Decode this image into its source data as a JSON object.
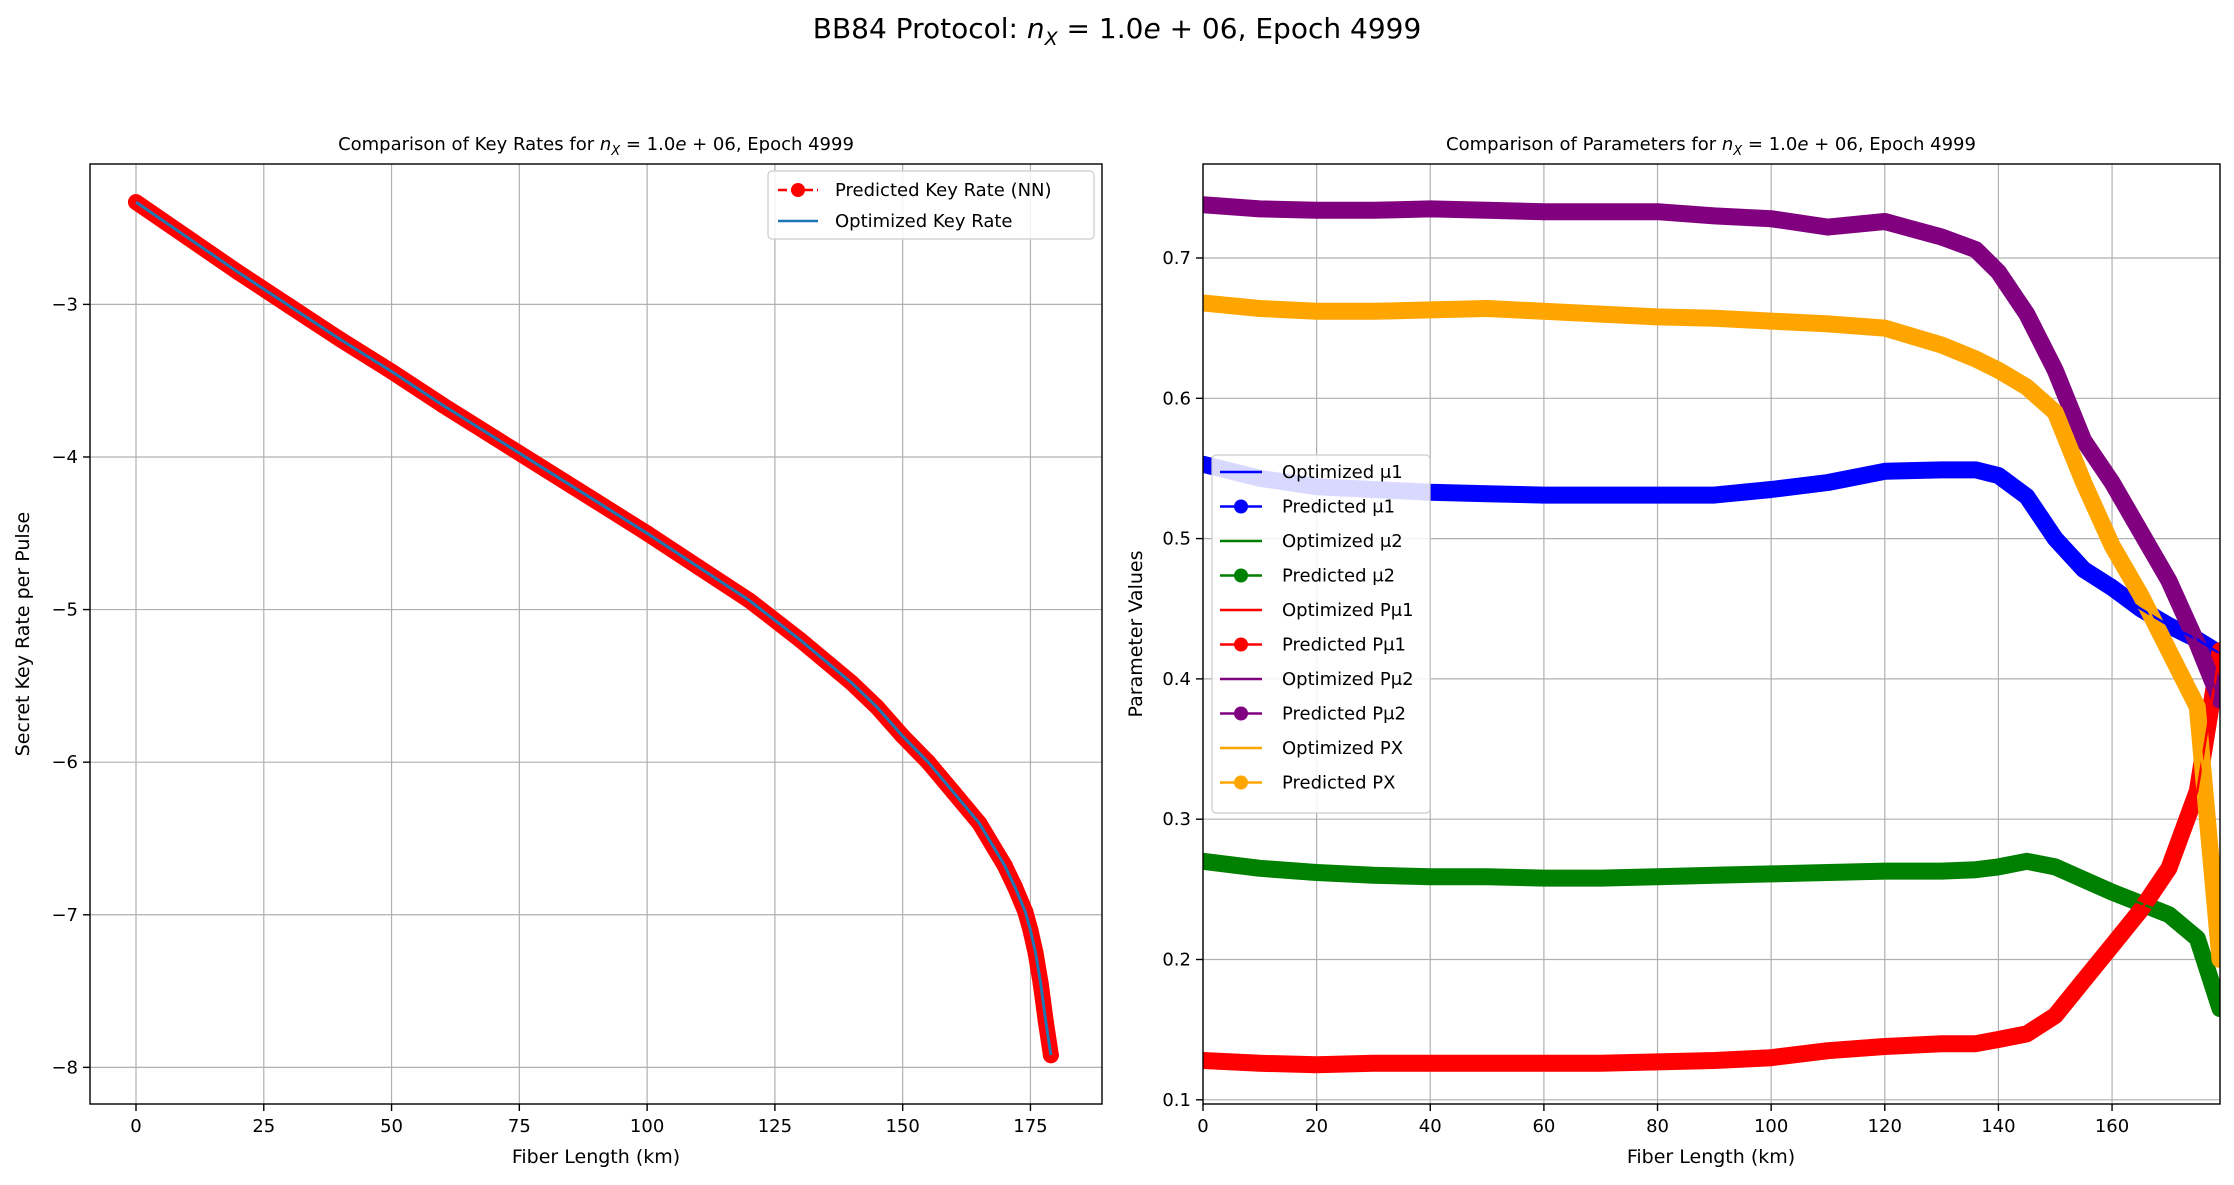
{
  "suptitle": "BB84 Protocol: n_X = 1.0e+06, Epoch 4999",
  "chart_data": [
    {
      "type": "line",
      "title": "Comparison of Key Rates for n_X = 1.0e+06, Epoch 4999",
      "xlabel": "Fiber Length (km)",
      "ylabel": "Secret Key Rate per Pulse",
      "xlim": [
        -9,
        189
      ],
      "ylim": [
        -8.24,
        -2.08
      ],
      "xticks": [
        "0",
        "25",
        "50",
        "75",
        "100",
        "125",
        "150",
        "175"
      ],
      "yticks": [
        "−3",
        "−4",
        "−5",
        "−6",
        "−7",
        "−8"
      ],
      "grid": true,
      "legend_position": "top-right",
      "x": [
        0,
        10,
        20,
        30,
        40,
        50,
        60,
        70,
        80,
        90,
        100,
        110,
        120,
        130,
        140,
        145,
        150,
        155,
        160,
        165,
        170,
        172,
        174,
        175,
        176,
        177,
        178,
        179
      ],
      "series": [
        {
          "name": "Predicted Key Rate (NN)",
          "color": "#ff0000",
          "style": "dashed-marker",
          "values": [
            -2.33,
            -2.56,
            -2.79,
            -3.01,
            -3.23,
            -3.44,
            -3.66,
            -3.87,
            -4.08,
            -4.29,
            -4.5,
            -4.72,
            -4.94,
            -5.2,
            -5.48,
            -5.64,
            -5.83,
            -6.0,
            -6.2,
            -6.4,
            -6.68,
            -6.82,
            -6.98,
            -7.1,
            -7.25,
            -7.45,
            -7.7,
            -7.92
          ]
        },
        {
          "name": "Optimized Key Rate",
          "color": "#1f77b4",
          "style": "solid",
          "values": [
            -2.33,
            -2.56,
            -2.79,
            -3.01,
            -3.23,
            -3.44,
            -3.66,
            -3.87,
            -4.08,
            -4.29,
            -4.5,
            -4.72,
            -4.94,
            -5.2,
            -5.48,
            -5.64,
            -5.83,
            -6.0,
            -6.2,
            -6.4,
            -6.68,
            -6.82,
            -6.98,
            -7.1,
            -7.25,
            -7.45,
            -7.7,
            -7.92
          ]
        }
      ]
    },
    {
      "type": "line",
      "title": "Comparison of Parameters for n_X = 1.0e+06, Epoch 4999",
      "xlabel": "Fiber Length (km)",
      "ylabel": "Parameter Values",
      "xlim": [
        0,
        179
      ],
      "ylim": [
        0.097,
        0.767
      ],
      "xticks": [
        "0",
        "20",
        "40",
        "60",
        "80",
        "100",
        "120",
        "140",
        "160"
      ],
      "yticks": [
        "0.1",
        "0.2",
        "0.3",
        "0.4",
        "0.5",
        "0.6",
        "0.7"
      ],
      "grid": true,
      "legend_position": "center-left",
      "x": [
        0,
        10,
        20,
        30,
        40,
        50,
        60,
        70,
        80,
        90,
        100,
        110,
        120,
        130,
        136,
        140,
        145,
        150,
        155,
        160,
        165,
        170,
        175,
        179
      ],
      "series": [
        {
          "name": "Optimized μ1",
          "color": "#0000ff",
          "style": "solid",
          "values": [
            0.553,
            0.543,
            0.537,
            0.535,
            0.533,
            0.532,
            0.531,
            0.531,
            0.531,
            0.531,
            0.535,
            0.54,
            0.548,
            0.549,
            0.549,
            0.545,
            0.53,
            0.5,
            0.478,
            0.465,
            0.45,
            0.438,
            0.428,
            0.418
          ]
        },
        {
          "name": "Predicted μ1",
          "color": "#0000ff",
          "style": "marker",
          "values": [
            0.553,
            0.543,
            0.537,
            0.535,
            0.533,
            0.532,
            0.531,
            0.531,
            0.531,
            0.531,
            0.535,
            0.54,
            0.548,
            0.549,
            0.549,
            0.545,
            0.53,
            0.5,
            0.478,
            0.465,
            0.45,
            0.438,
            0.428,
            0.418
          ]
        },
        {
          "name": "Optimized μ2",
          "color": "#008000",
          "style": "solid",
          "values": [
            0.27,
            0.265,
            0.262,
            0.26,
            0.259,
            0.259,
            0.258,
            0.258,
            0.259,
            0.26,
            0.261,
            0.262,
            0.263,
            0.263,
            0.264,
            0.266,
            0.27,
            0.266,
            0.257,
            0.248,
            0.24,
            0.232,
            0.215,
            0.165
          ]
        },
        {
          "name": "Predicted μ2",
          "color": "#008000",
          "style": "marker",
          "values": [
            0.27,
            0.265,
            0.262,
            0.26,
            0.259,
            0.259,
            0.258,
            0.258,
            0.259,
            0.26,
            0.261,
            0.262,
            0.263,
            0.263,
            0.264,
            0.266,
            0.27,
            0.266,
            0.257,
            0.248,
            0.24,
            0.232,
            0.215,
            0.165
          ]
        },
        {
          "name": "Optimized Pμ1",
          "color": "#ff0000",
          "style": "solid",
          "values": [
            0.128,
            0.126,
            0.125,
            0.126,
            0.126,
            0.126,
            0.126,
            0.126,
            0.127,
            0.128,
            0.13,
            0.135,
            0.138,
            0.14,
            0.14,
            0.143,
            0.147,
            0.16,
            0.185,
            0.21,
            0.235,
            0.265,
            0.32,
            0.42
          ]
        },
        {
          "name": "Predicted Pμ1",
          "color": "#ff0000",
          "style": "marker",
          "values": [
            0.128,
            0.126,
            0.125,
            0.126,
            0.126,
            0.126,
            0.126,
            0.126,
            0.127,
            0.128,
            0.13,
            0.135,
            0.138,
            0.14,
            0.14,
            0.143,
            0.147,
            0.16,
            0.185,
            0.21,
            0.235,
            0.265,
            0.32,
            0.42
          ]
        },
        {
          "name": "Optimized Pμ2",
          "color": "#800080",
          "style": "solid",
          "values": [
            0.738,
            0.735,
            0.734,
            0.734,
            0.735,
            0.734,
            0.733,
            0.733,
            0.733,
            0.73,
            0.728,
            0.722,
            0.726,
            0.715,
            0.706,
            0.69,
            0.66,
            0.62,
            0.57,
            0.54,
            0.505,
            0.47,
            0.425,
            0.385
          ]
        },
        {
          "name": "Predicted Pμ2",
          "color": "#800080",
          "style": "marker",
          "values": [
            0.738,
            0.735,
            0.734,
            0.734,
            0.735,
            0.734,
            0.733,
            0.733,
            0.733,
            0.73,
            0.728,
            0.722,
            0.726,
            0.715,
            0.706,
            0.69,
            0.66,
            0.62,
            0.57,
            0.54,
            0.505,
            0.47,
            0.425,
            0.385
          ]
        },
        {
          "name": "Optimized PX",
          "color": "#ffa500",
          "style": "solid",
          "values": [
            0.668,
            0.664,
            0.662,
            0.662,
            0.663,
            0.664,
            0.662,
            0.66,
            0.658,
            0.657,
            0.655,
            0.653,
            0.65,
            0.638,
            0.628,
            0.62,
            0.608,
            0.59,
            0.54,
            0.495,
            0.46,
            0.42,
            0.38,
            0.2
          ]
        },
        {
          "name": "Predicted PX",
          "color": "#ffa500",
          "style": "marker",
          "values": [
            0.668,
            0.664,
            0.662,
            0.662,
            0.663,
            0.664,
            0.662,
            0.66,
            0.658,
            0.657,
            0.655,
            0.653,
            0.65,
            0.638,
            0.628,
            0.62,
            0.608,
            0.59,
            0.54,
            0.495,
            0.46,
            0.42,
            0.38,
            0.2
          ]
        }
      ]
    }
  ]
}
